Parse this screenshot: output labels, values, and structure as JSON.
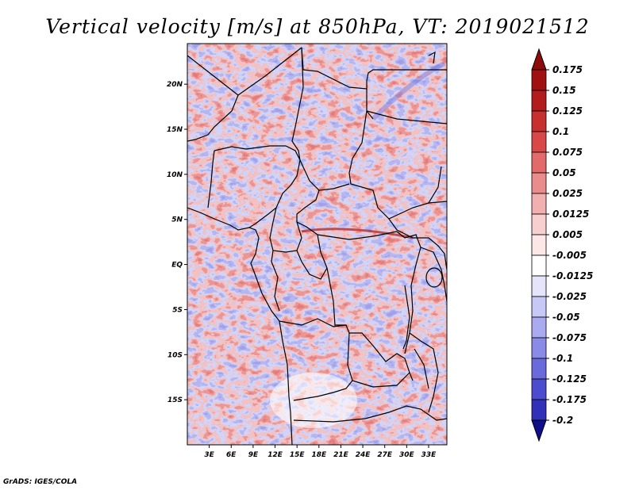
{
  "title": "Vertical velocity [m/s] at 850hPa, VT: 2019021512",
  "footer": "GrADS: IGES/COLA",
  "map": {
    "lat_range": [
      -20,
      24.5
    ],
    "lon_range": [
      0,
      35.5
    ],
    "lat_ticks": [
      {
        "value": 20,
        "label": "20N"
      },
      {
        "value": 15,
        "label": "15N"
      },
      {
        "value": 10,
        "label": "10N"
      },
      {
        "value": 5,
        "label": "5N"
      },
      {
        "value": 0,
        "label": "EQ"
      },
      {
        "value": -5,
        "label": "5S"
      },
      {
        "value": -10,
        "label": "10S"
      },
      {
        "value": -15,
        "label": "15S"
      }
    ],
    "lon_ticks": [
      {
        "value": 3,
        "label": "3E"
      },
      {
        "value": 6,
        "label": "6E"
      },
      {
        "value": 9,
        "label": "9E"
      },
      {
        "value": 12,
        "label": "12E"
      },
      {
        "value": 15,
        "label": "15E"
      },
      {
        "value": 18,
        "label": "18E"
      },
      {
        "value": 21,
        "label": "21E"
      },
      {
        "value": 24,
        "label": "24E"
      },
      {
        "value": 27,
        "label": "27E"
      },
      {
        "value": 30,
        "label": "30E"
      },
      {
        "value": 33,
        "label": "33E"
      }
    ]
  },
  "colorbar": {
    "levels": [
      {
        "label": "0.175",
        "color": "#a01010"
      },
      {
        "label": "0.15",
        "color": "#b31c1c"
      },
      {
        "label": "0.125",
        "color": "#c83030"
      },
      {
        "label": "0.1",
        "color": "#d94848"
      },
      {
        "label": "0.075",
        "color": "#e26a6a"
      },
      {
        "label": "0.05",
        "color": "#eb8c8c"
      },
      {
        "label": "0.025",
        "color": "#f2afaf"
      },
      {
        "label": "0.0125",
        "color": "#f8cfcf"
      },
      {
        "label": "0.005",
        "color": "#fce6e6"
      },
      {
        "label": "-0.005",
        "color": "#ffffff"
      },
      {
        "label": "-0.0125",
        "color": "#e4e4fb"
      },
      {
        "label": "-0.025",
        "color": "#c8c8f6"
      },
      {
        "label": "-0.05",
        "color": "#aaaaf0"
      },
      {
        "label": "-0.075",
        "color": "#8a8ae8"
      },
      {
        "label": "-0.1",
        "color": "#6a6add"
      },
      {
        "label": "-0.125",
        "color": "#4c4cce"
      },
      {
        "label": "-0.175",
        "color": "#3030b8"
      },
      {
        "label": "-0.2",
        "color": "#1a1a9c"
      }
    ],
    "top_cap_color": "#8c0c0c",
    "bottom_cap_color": "#10108a"
  }
}
